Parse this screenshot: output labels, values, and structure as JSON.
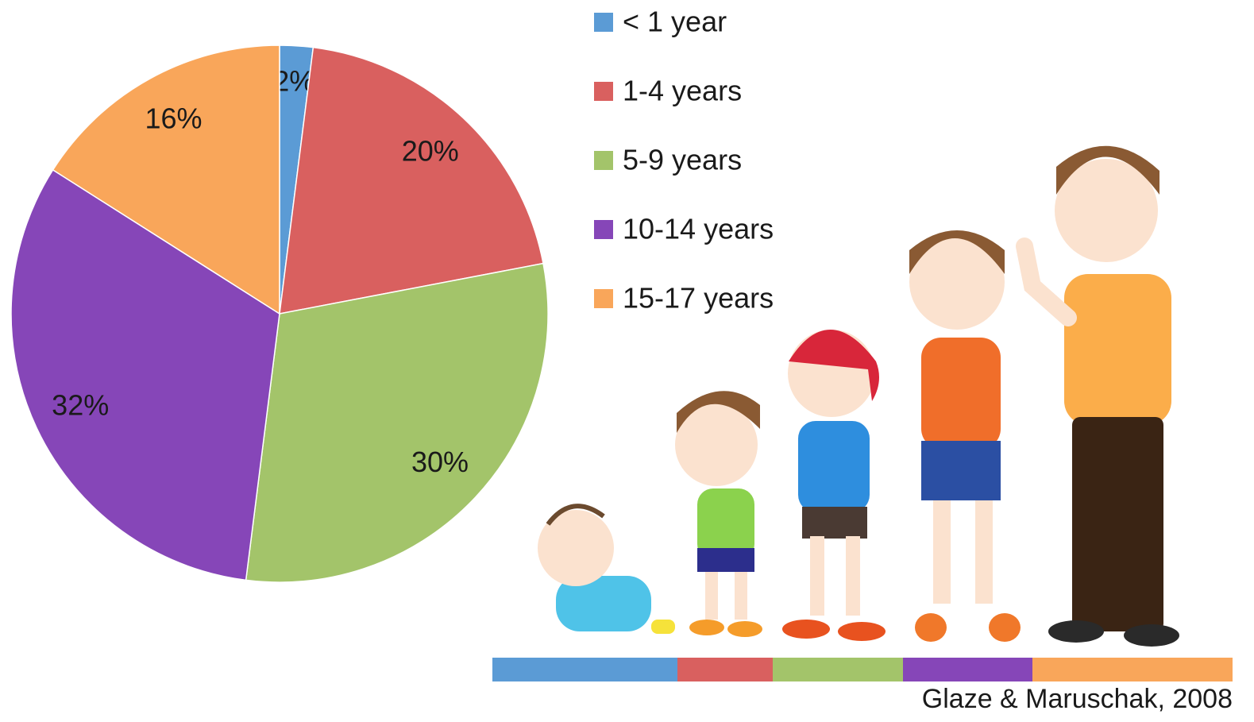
{
  "chart_data": {
    "type": "pie",
    "categories": [
      "< 1 year",
      "1-4 years",
      "5-9 years",
      "10-14 years",
      "15-17 years"
    ],
    "values": [
      2,
      20,
      30,
      32,
      16
    ],
    "value_labels": [
      "2%",
      "20%",
      "30%",
      "32%",
      "16%"
    ],
    "colors": [
      "#5b9bd5",
      "#d9605f",
      "#a3c46a",
      "#8646b8",
      "#f9a65a"
    ],
    "source": "Glaze & Maruschak, 2008"
  }
}
